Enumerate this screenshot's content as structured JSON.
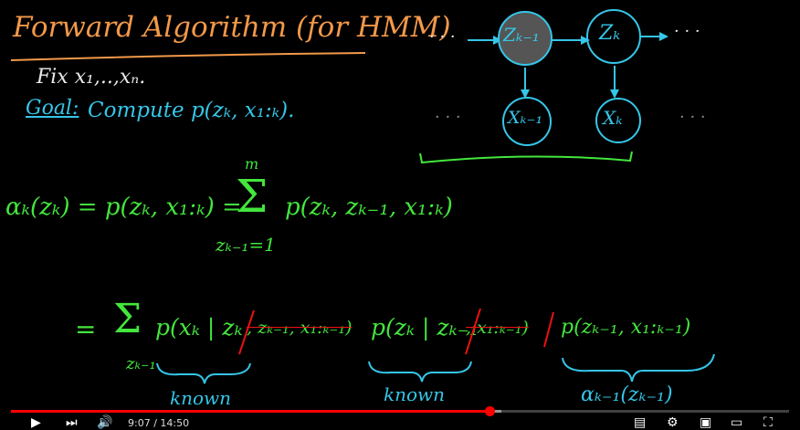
{
  "slide": {
    "title": "Forward Algorithm (for HMM)",
    "fix_line": "Fix x₁,..,xₙ.",
    "goal_label": "Goal:",
    "goal_text": "Compute  p(zₖ, x₁:ₖ).",
    "graph": {
      "dots_left_top": "· · ·",
      "dots_right_top": "· · ·",
      "dots_left_bottom": "· · ·",
      "dots_right_bottom": "· · ·",
      "node_zk1": "Zₖ₋₁",
      "node_zk": "Zₖ",
      "node_xk1": "Xₖ₋₁",
      "node_xk": "Xₖ"
    },
    "eq1_lhs": "αₖ(zₖ) = p(zₖ, x₁:ₖ) =",
    "eq1_sum_top": "m",
    "eq1_sum": "Σ",
    "eq1_sum_bottom": "zₖ₋₁=1",
    "eq1_rhs": "p(zₖ, zₖ₋₁, x₁:ₖ)",
    "eq2_sign": "=",
    "eq2_sum": "Σ",
    "eq2_sum_bottom": "zₖ₋₁",
    "eq2_term1": "p(xₖ | zₖ",
    "eq2_term1_struck": ", zₖ₋₁, x₁:ₖ₋₁)",
    "eq2_term2": "p(zₖ | zₖ₋₁",
    "eq2_term2_struck": ", x₁:ₖ₋₁)",
    "eq2_term3": "p(zₖ₋₁, x₁:ₖ₋₁)",
    "label_known1": "known",
    "label_known2": "known",
    "label_alpha": "αₖ₋₁(zₖ₋₁)"
  },
  "player": {
    "time": "9:07 / 14:50",
    "played_fraction": 0.615,
    "loaded_fraction": 0.63
  }
}
